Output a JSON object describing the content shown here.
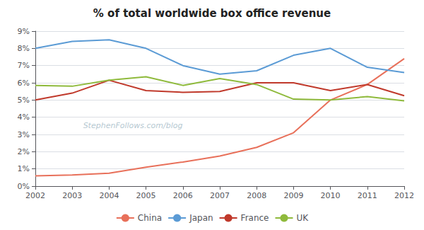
{
  "chart_data": {
    "type": "line",
    "title": "% of total worldwide box office revenue",
    "x": [
      2002,
      2003,
      2004,
      2005,
      2006,
      2007,
      2008,
      2009,
      2010,
      2011,
      2012
    ],
    "series": [
      {
        "name": "China",
        "color": "#e8705a",
        "values": [
          0.6,
          0.65,
          0.75,
          1.1,
          1.4,
          1.75,
          2.25,
          3.1,
          5.0,
          5.9,
          7.4
        ]
      },
      {
        "name": "Japan",
        "color": "#5b9bd5",
        "values": [
          8.0,
          8.4,
          8.5,
          8.0,
          7.0,
          6.5,
          6.7,
          7.6,
          8.0,
          6.9,
          6.6
        ]
      },
      {
        "name": "France",
        "color": "#c0392b",
        "values": [
          5.0,
          5.4,
          6.15,
          5.55,
          5.45,
          5.5,
          6.0,
          6.0,
          5.55,
          5.9,
          5.25
        ]
      },
      {
        "name": "UK",
        "color": "#8fba3c",
        "values": [
          5.85,
          5.8,
          6.15,
          6.35,
          5.85,
          6.25,
          5.9,
          5.05,
          5.0,
          5.2,
          4.95
        ]
      }
    ],
    "xlim": [
      2002,
      2012
    ],
    "xticks": [
      2002,
      2003,
      2004,
      2005,
      2006,
      2007,
      2008,
      2009,
      2010,
      2011,
      2012
    ],
    "ylim": [
      0,
      9
    ],
    "yticks": [
      {
        "value": 0,
        "label": "0%"
      },
      {
        "value": 1,
        "label": "1%"
      },
      {
        "value": 2,
        "label": "2%"
      },
      {
        "value": 3,
        "label": "3%"
      },
      {
        "value": 4,
        "label": "4%"
      },
      {
        "value": 5,
        "label": "5%"
      },
      {
        "value": 6,
        "label": "6%"
      },
      {
        "value": 7,
        "label": "7%"
      },
      {
        "value": 8,
        "label": "8%"
      },
      {
        "value": 9,
        "label": "9%"
      }
    ],
    "grid": true,
    "legend": "bottom",
    "annotations": [
      {
        "text": "StephenFollows.com/blog",
        "x": 2003.2,
        "y": 3.5
      }
    ]
  }
}
